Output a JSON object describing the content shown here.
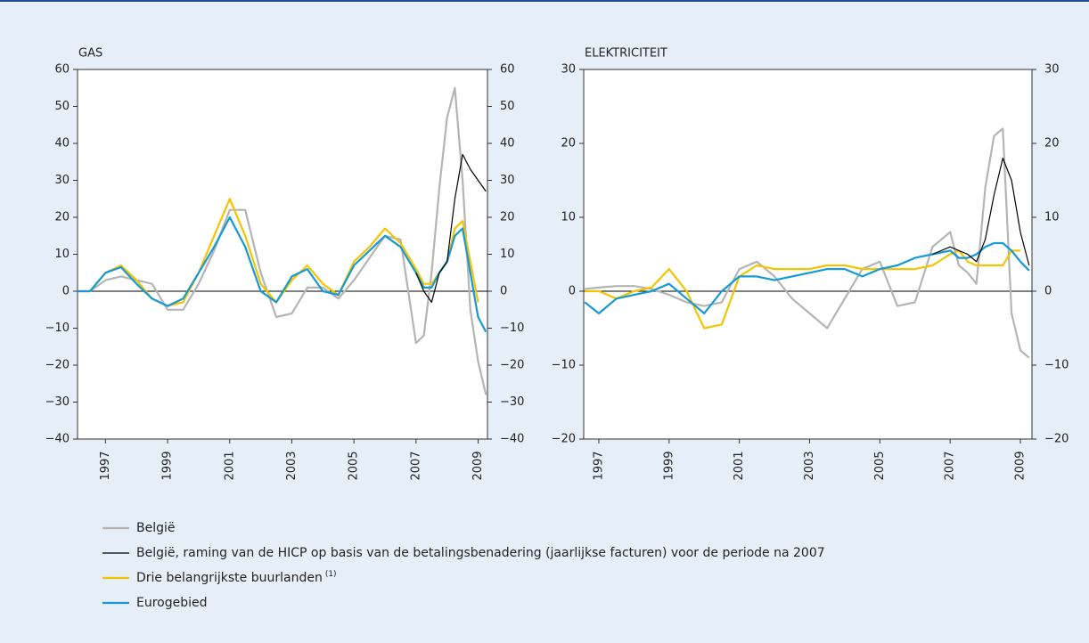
{
  "chart_data": [
    {
      "type": "line",
      "title": "GAS",
      "x": [
        1996.1,
        1996.5,
        1997,
        1997.5,
        1998,
        1998.5,
        1999,
        1999.5,
        2000,
        2000.5,
        2001,
        2001.5,
        2002,
        2002.5,
        2003,
        2003.5,
        2004,
        2004.5,
        2005,
        2005.5,
        2006,
        2006.5,
        2007,
        2007.25,
        2007.5,
        2007.75,
        2008,
        2008.25,
        2008.5,
        2008.75,
        2009,
        2009.25
      ],
      "xlim": [
        1996.1,
        2009.3
      ],
      "xticks": [
        1997,
        1999,
        2001,
        2003,
        2005,
        2007,
        2009
      ],
      "ylim": [
        -40,
        60
      ],
      "yticks": [
        {
          "value": -40,
          "label": "−40"
        },
        {
          "value": -30,
          "label": "−30"
        },
        {
          "value": -20,
          "label": "−20"
        },
        {
          "value": -10,
          "label": "−10"
        },
        0,
        10,
        20,
        30,
        40,
        50,
        60
      ],
      "y2lim": [
        -40,
        60
      ],
      "y2ticks": [
        {
          "value": -40,
          "label": "−40"
        },
        {
          "value": -30,
          "label": "−30"
        },
        {
          "value": -20,
          "label": "−20"
        },
        {
          "value": -10,
          "label": "−10"
        },
        0,
        10,
        20,
        30,
        40,
        50,
        60
      ],
      "series": [
        {
          "name": "België",
          "color": "#b4b4b4",
          "values": [
            0,
            0,
            3,
            4,
            3,
            2,
            -5,
            -5,
            2,
            11,
            22,
            22,
            5,
            -7,
            -6,
            1,
            1,
            -2,
            3,
            9,
            15,
            14,
            -14,
            -12,
            5,
            28,
            47,
            55,
            30,
            -5,
            -19,
            -28
          ]
        },
        {
          "name": "België, raming van de HICP op basis van de betalingsbenadering (jaarlijkse facturen) voor de periode na 2007",
          "color": "#000000",
          "values": [
            null,
            null,
            null,
            null,
            null,
            null,
            null,
            null,
            null,
            null,
            null,
            null,
            null,
            null,
            null,
            null,
            null,
            null,
            null,
            null,
            null,
            null,
            5,
            0,
            -3,
            5,
            8,
            25,
            37,
            33,
            30,
            27
          ]
        },
        {
          "name": "Drie belangrijkste buurlanden",
          "name_note": "(1)",
          "color": "#f5c400",
          "values": [
            0,
            0,
            5,
            7,
            3,
            -2,
            -4,
            -3,
            5,
            15,
            25,
            15,
            2,
            -3,
            3,
            7,
            2,
            -1,
            8,
            12,
            17,
            13,
            6,
            2,
            2,
            5,
            8,
            17,
            19,
            8,
            -3,
            null
          ]
        },
        {
          "name": "Eurogebied",
          "color": "#149ad6",
          "values": [
            0,
            0,
            5,
            6.5,
            2,
            -2,
            -4,
            -2,
            5,
            12,
            20,
            12,
            0,
            -3,
            4,
            6,
            0,
            -1,
            7,
            11,
            15,
            12,
            5,
            1,
            1,
            5,
            8,
            15,
            17,
            5,
            -7,
            -11
          ]
        }
      ]
    },
    {
      "type": "line",
      "title": "ELEKTRICITEIT",
      "x": [
        1996.6,
        1997,
        1997.5,
        1998,
        1998.5,
        1999,
        1999.5,
        2000,
        2000.5,
        2001,
        2001.5,
        2002,
        2002.5,
        2003,
        2003.5,
        2004,
        2004.5,
        2005,
        2005.5,
        2006,
        2006.5,
        2007,
        2007.25,
        2007.5,
        2007.75,
        2008,
        2008.25,
        2008.5,
        2008.75,
        2009,
        2009.25
      ],
      "xlim": [
        1996.57,
        2009.33
      ],
      "xticks": [
        1997,
        1999,
        2001,
        2003,
        2005,
        2007,
        2009
      ],
      "ylim": [
        -20,
        30
      ],
      "yticks": [
        {
          "value": -20,
          "label": "−20"
        },
        {
          "value": -10,
          "label": "−10"
        },
        0,
        10,
        20,
        30
      ],
      "y2lim": [
        -20,
        30
      ],
      "y2ticks": [
        {
          "value": -20,
          "label": "−20"
        },
        {
          "value": -10,
          "label": "−10"
        },
        0,
        10,
        20,
        30
      ],
      "series": [
        {
          "name": "België",
          "color": "#b4b4b4",
          "values": [
            0.3,
            0.5,
            0.7,
            0.7,
            0.3,
            -0.5,
            -1.5,
            -2,
            -1.5,
            3,
            4,
            2,
            -1,
            -3,
            -5,
            -1,
            3,
            4,
            -2,
            -1.5,
            6,
            8,
            3.5,
            2.5,
            1,
            14,
            21,
            22,
            -3,
            -8,
            -9
          ]
        },
        {
          "name": "België, raming van de HICP op basis van de betalingsbenadering (jaarlijkse facturen) voor de periode na 2007",
          "color": "#000000",
          "values": [
            null,
            null,
            null,
            null,
            null,
            null,
            null,
            null,
            null,
            null,
            null,
            null,
            null,
            null,
            null,
            null,
            null,
            null,
            null,
            null,
            5,
            6,
            5.5,
            5,
            4,
            7,
            13,
            18,
            15,
            8,
            3.5
          ]
        },
        {
          "name": "Drie belangrijkste buurlanden",
          "name_note": "(1)",
          "color": "#f5c400",
          "values": [
            0,
            0,
            -1,
            0,
            0.5,
            3,
            0,
            -5,
            -4.5,
            2,
            3.5,
            3,
            3,
            3,
            3.5,
            3.5,
            3,
            3,
            3,
            3,
            3.5,
            5,
            5.5,
            4,
            3.5,
            3.5,
            3.5,
            3.5,
            5.5,
            5.5,
            null
          ]
        },
        {
          "name": "Eurogebied",
          "color": "#149ad6",
          "values": [
            -1.5,
            -3,
            -1,
            -0.5,
            0,
            1,
            -1,
            -3,
            0,
            2,
            2,
            1.5,
            2,
            2.5,
            3,
            3,
            2,
            3,
            3.5,
            4.5,
            5,
            5.5,
            4.5,
            4.5,
            5,
            6,
            6.5,
            6.5,
            5.5,
            4,
            2.8
          ]
        }
      ]
    }
  ]
}
